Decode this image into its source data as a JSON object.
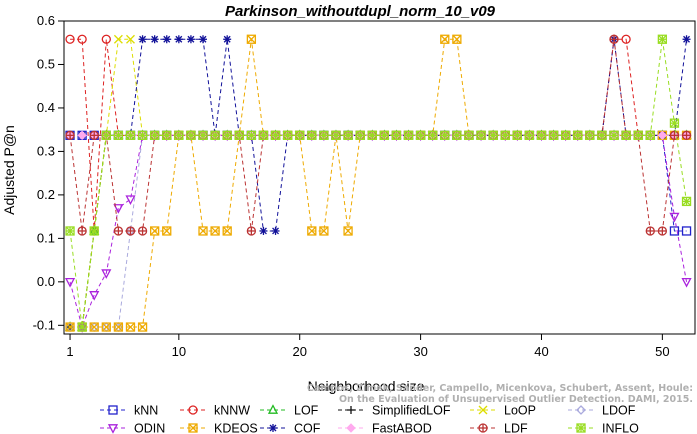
{
  "chart_data": {
    "type": "line",
    "title": "Parkinson_withoutdupl_norm_10_v09",
    "xlabel": "Neighborhood size",
    "ylabel": "Adjusted P@n",
    "xlim": [
      1,
      52
    ],
    "ylim": [
      -0.12,
      0.6
    ],
    "xticks": [
      1,
      10,
      20,
      30,
      40,
      50
    ],
    "yticks": [
      -0.1,
      0.0,
      0.1,
      0.2,
      0.3,
      0.4,
      0.5,
      0.6
    ],
    "x": [
      1,
      2,
      3,
      4,
      5,
      6,
      7,
      8,
      9,
      10,
      11,
      12,
      13,
      14,
      15,
      16,
      17,
      18,
      19,
      20,
      21,
      22,
      23,
      24,
      25,
      26,
      27,
      28,
      29,
      30,
      31,
      32,
      33,
      34,
      35,
      36,
      37,
      38,
      39,
      40,
      41,
      42,
      43,
      44,
      45,
      46,
      47,
      48,
      49,
      50,
      51,
      52
    ],
    "legend_position": "bottom",
    "grid": false,
    "credit": "Campos, Zimek, Sander, Campello, Micenkova, Schubert, Assent, Houle: On the Evaluation of Unsupervised Outlier Detection. DAMI, 2015.",
    "series": [
      {
        "name": "kNN",
        "color": "#2222cc",
        "marker": "square",
        "values": [
          0.337,
          0.337,
          0.337,
          0.337,
          0.337,
          0.337,
          0.337,
          0.337,
          0.337,
          0.337,
          0.337,
          0.337,
          0.337,
          0.337,
          0.337,
          0.337,
          0.337,
          0.337,
          0.337,
          0.337,
          0.337,
          0.337,
          0.337,
          0.337,
          0.337,
          0.337,
          0.337,
          0.337,
          0.337,
          0.337,
          0.337,
          0.337,
          0.337,
          0.337,
          0.337,
          0.337,
          0.337,
          0.337,
          0.337,
          0.337,
          0.337,
          0.337,
          0.337,
          0.337,
          0.337,
          0.337,
          0.337,
          0.337,
          0.337,
          0.337,
          0.117,
          0.117
        ]
      },
      {
        "name": "kNNW",
        "color": "#dd2222",
        "marker": "circle",
        "values": [
          0.558,
          0.558,
          0.117,
          0.558,
          0.337,
          0.337,
          0.337,
          0.337,
          0.337,
          0.337,
          0.337,
          0.337,
          0.337,
          0.337,
          0.337,
          0.337,
          0.337,
          0.337,
          0.337,
          0.337,
          0.337,
          0.337,
          0.337,
          0.337,
          0.337,
          0.337,
          0.337,
          0.337,
          0.337,
          0.337,
          0.337,
          0.337,
          0.337,
          0.337,
          0.337,
          0.337,
          0.337,
          0.337,
          0.337,
          0.337,
          0.337,
          0.337,
          0.337,
          0.337,
          0.337,
          0.558,
          0.558,
          0.337,
          0.337,
          0.337,
          0.337,
          0.337
        ]
      },
      {
        "name": "LOF",
        "color": "#22bb22",
        "marker": "triangle-up",
        "values": [
          -0.104,
          -0.104,
          0.117,
          0.337,
          0.337,
          0.337,
          0.337,
          0.337,
          0.337,
          0.337,
          0.337,
          0.337,
          0.337,
          0.337,
          0.337,
          0.337,
          0.337,
          0.337,
          0.337,
          0.337,
          0.337,
          0.337,
          0.337,
          0.337,
          0.337,
          0.337,
          0.337,
          0.337,
          0.337,
          0.337,
          0.337,
          0.337,
          0.337,
          0.337,
          0.337,
          0.337,
          0.337,
          0.337,
          0.337,
          0.337,
          0.337,
          0.337,
          0.337,
          0.337,
          0.337,
          0.337,
          0.337,
          0.337,
          0.337,
          0.337,
          0.337,
          0.337
        ]
      },
      {
        "name": "SimplifiedLOF",
        "color": "#111111",
        "marker": "plus",
        "values": [
          -0.104,
          -0.104,
          0.117,
          0.337,
          0.337,
          0.337,
          0.337,
          0.337,
          0.337,
          0.337,
          0.337,
          0.337,
          0.337,
          0.337,
          0.337,
          0.337,
          0.337,
          0.337,
          0.337,
          0.337,
          0.337,
          0.337,
          0.337,
          0.337,
          0.337,
          0.337,
          0.337,
          0.337,
          0.337,
          0.337,
          0.337,
          0.337,
          0.337,
          0.337,
          0.337,
          0.337,
          0.337,
          0.337,
          0.337,
          0.337,
          0.337,
          0.337,
          0.337,
          0.337,
          0.337,
          0.337,
          0.337,
          0.337,
          0.337,
          0.337,
          0.337,
          0.337
        ]
      },
      {
        "name": "LoOP",
        "color": "#dddd00",
        "marker": "cross",
        "values": [
          -0.104,
          -0.104,
          0.117,
          0.337,
          0.558,
          0.558,
          0.337,
          0.337,
          0.337,
          0.337,
          0.337,
          0.337,
          0.337,
          0.337,
          0.337,
          0.337,
          0.337,
          0.337,
          0.337,
          0.337,
          0.337,
          0.337,
          0.337,
          0.337,
          0.337,
          0.337,
          0.337,
          0.337,
          0.337,
          0.337,
          0.337,
          0.337,
          0.337,
          0.337,
          0.337,
          0.337,
          0.337,
          0.337,
          0.337,
          0.337,
          0.337,
          0.337,
          0.337,
          0.337,
          0.337,
          0.337,
          0.337,
          0.337,
          0.337,
          0.337,
          0.337,
          0.337
        ]
      },
      {
        "name": "LDOF",
        "color": "#aaaadd",
        "marker": "diamond",
        "values": [
          -0.104,
          -0.104,
          -0.104,
          -0.104,
          -0.104,
          0.117,
          0.337,
          0.337,
          0.337,
          0.337,
          0.337,
          0.337,
          0.337,
          0.337,
          0.337,
          0.337,
          0.337,
          0.337,
          0.337,
          0.337,
          0.337,
          0.337,
          0.337,
          0.337,
          0.337,
          0.337,
          0.337,
          0.337,
          0.337,
          0.337,
          0.337,
          0.337,
          0.337,
          0.337,
          0.337,
          0.337,
          0.337,
          0.337,
          0.337,
          0.337,
          0.337,
          0.337,
          0.337,
          0.337,
          0.337,
          0.337,
          0.337,
          0.337,
          0.337,
          0.337,
          0.337,
          0.337
        ]
      },
      {
        "name": "ODIN",
        "color": "#aa22dd",
        "marker": "triangle-down",
        "values": [
          0.0,
          -0.104,
          -0.03,
          0.02,
          0.17,
          0.19,
          0.337,
          0.337,
          0.337,
          0.337,
          0.337,
          0.337,
          0.337,
          0.337,
          0.337,
          0.337,
          0.337,
          0.337,
          0.337,
          0.337,
          0.337,
          0.337,
          0.337,
          0.337,
          0.337,
          0.337,
          0.337,
          0.337,
          0.337,
          0.337,
          0.337,
          0.337,
          0.337,
          0.337,
          0.337,
          0.337,
          0.337,
          0.337,
          0.337,
          0.337,
          0.337,
          0.337,
          0.337,
          0.337,
          0.337,
          0.337,
          0.337,
          0.337,
          0.337,
          0.337,
          0.15,
          0.0
        ]
      },
      {
        "name": "KDEOS",
        "color": "#eeaa00",
        "marker": "square-x",
        "values": [
          -0.104,
          -0.104,
          -0.104,
          -0.104,
          -0.104,
          -0.104,
          -0.104,
          0.117,
          0.117,
          0.337,
          0.337,
          0.117,
          0.117,
          0.117,
          0.337,
          0.558,
          0.337,
          0.337,
          0.337,
          0.337,
          0.117,
          0.117,
          0.337,
          0.117,
          0.337,
          0.337,
          0.337,
          0.337,
          0.337,
          0.337,
          0.337,
          0.558,
          0.558,
          0.337,
          0.337,
          0.337,
          0.337,
          0.337,
          0.337,
          0.337,
          0.337,
          0.337,
          0.337,
          0.337,
          0.337,
          0.337,
          0.337,
          0.337,
          0.337,
          0.337,
          0.337,
          0.337
        ]
      },
      {
        "name": "COF",
        "color": "#111199",
        "marker": "asterisk",
        "values": [
          0.337,
          0.337,
          0.337,
          0.337,
          0.337,
          0.337,
          0.558,
          0.558,
          0.558,
          0.558,
          0.558,
          0.558,
          0.337,
          0.558,
          0.337,
          0.337,
          0.117,
          0.117,
          0.337,
          0.337,
          0.337,
          0.337,
          0.337,
          0.337,
          0.337,
          0.337,
          0.337,
          0.337,
          0.337,
          0.337,
          0.337,
          0.337,
          0.337,
          0.337,
          0.337,
          0.337,
          0.337,
          0.337,
          0.337,
          0.337,
          0.337,
          0.337,
          0.337,
          0.337,
          0.337,
          0.558,
          0.337,
          0.337,
          0.337,
          0.337,
          0.337,
          0.558
        ]
      },
      {
        "name": "FastABOD",
        "color": "#ffaaee",
        "marker": "diamond-filled",
        "values": [
          0.337,
          0.337,
          0.337,
          0.337,
          0.337,
          0.337,
          0.337,
          0.337,
          0.337,
          0.337,
          0.337,
          0.337,
          0.337,
          0.337,
          0.337,
          0.337,
          0.337,
          0.337,
          0.337,
          0.337,
          0.337,
          0.337,
          0.337,
          0.337,
          0.337,
          0.337,
          0.337,
          0.337,
          0.337,
          0.337,
          0.337,
          0.337,
          0.337,
          0.337,
          0.337,
          0.337,
          0.337,
          0.337,
          0.337,
          0.337,
          0.337,
          0.337,
          0.337,
          0.337,
          0.337,
          0.337,
          0.337,
          0.337,
          0.337,
          0.337,
          0.337,
          0.337
        ]
      },
      {
        "name": "LDF",
        "color": "#bb3333",
        "marker": "circle-plus",
        "values": [
          0.337,
          0.117,
          0.337,
          0.337,
          0.117,
          0.117,
          0.117,
          0.337,
          0.337,
          0.337,
          0.337,
          0.337,
          0.337,
          0.337,
          0.337,
          0.117,
          0.337,
          0.337,
          0.337,
          0.337,
          0.337,
          0.337,
          0.337,
          0.337,
          0.337,
          0.337,
          0.337,
          0.337,
          0.337,
          0.337,
          0.337,
          0.337,
          0.337,
          0.337,
          0.337,
          0.337,
          0.337,
          0.337,
          0.337,
          0.337,
          0.337,
          0.337,
          0.337,
          0.337,
          0.337,
          0.558,
          0.337,
          0.337,
          0.117,
          0.117,
          0.337,
          0.337
        ]
      },
      {
        "name": "INFLO",
        "color": "#99dd22",
        "marker": "star-box",
        "values": [
          0.117,
          -0.104,
          0.117,
          0.337,
          0.337,
          0.337,
          0.337,
          0.337,
          0.337,
          0.337,
          0.337,
          0.337,
          0.337,
          0.337,
          0.337,
          0.337,
          0.337,
          0.337,
          0.337,
          0.337,
          0.337,
          0.337,
          0.337,
          0.337,
          0.337,
          0.337,
          0.337,
          0.337,
          0.337,
          0.337,
          0.337,
          0.337,
          0.337,
          0.337,
          0.337,
          0.337,
          0.337,
          0.337,
          0.337,
          0.337,
          0.337,
          0.337,
          0.337,
          0.337,
          0.337,
          0.337,
          0.337,
          0.337,
          0.337,
          0.558,
          0.365,
          0.185
        ]
      }
    ]
  }
}
